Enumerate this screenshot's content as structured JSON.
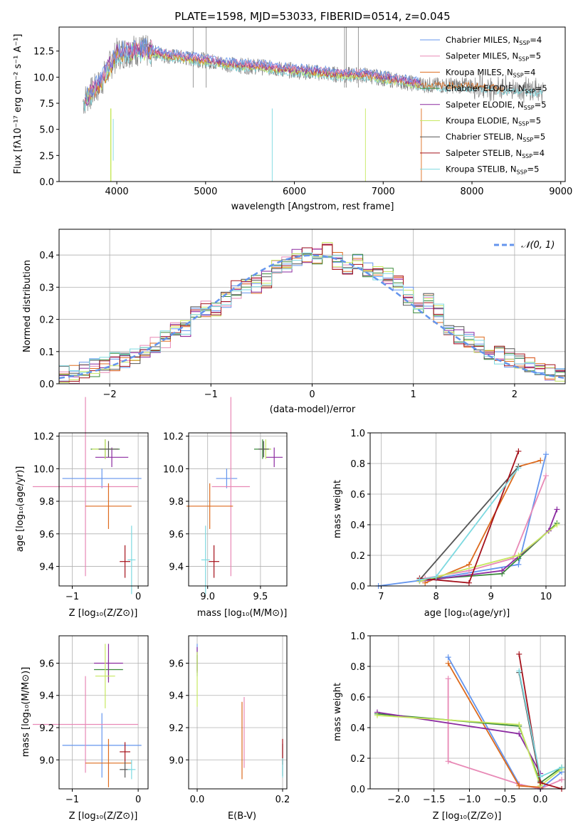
{
  "colors": [
    "#6495ed",
    "#e889b6",
    "#dd6b1e",
    "#3a8a3a",
    "#8b2aa0",
    "#c7e860",
    "#555555",
    "#a5121c",
    "#7dd9e0"
  ],
  "spectrum": {
    "title": "PLATE=1598, MJD=53033, FIBERID=0514, z=0.045",
    "xlabel": "wavelength [Angstrom, rest frame]",
    "ylabel": "Flux [fλ10⁻¹⁷ erg cm⁻² s⁻¹ A⁻¹]",
    "xticks": [
      "4000",
      "5000",
      "6000",
      "7000",
      "8000",
      "9000"
    ],
    "yticks": [
      "0.0",
      "2.5",
      "5.0",
      "7.5",
      "10.0",
      "12.5"
    ],
    "xlim": [
      3350,
      9050
    ],
    "ylim": [
      0,
      14.8
    ],
    "legend": [
      "Chabrier MILES, N_SSP=4",
      "Salpeter MILES, N_SSP=5",
      "Kroupa MILES, N_SSP=4",
      "Chabrier ELODIE, N_SSP=5",
      "Salpeter ELODIE, N_SSP=5",
      "Kroupa ELODIE, N_SSP=5",
      "Chabrier STELIB, N_SSP=5",
      "Salpeter STELIB, N_SSP=4",
      "Kroupa STELIB, N_SSP=5"
    ]
  },
  "residuals": {
    "xlabel": "(data-model)/error",
    "ylabel": "Normed distribution",
    "xticks": [
      "−2",
      "−1",
      "0",
      "1",
      "2"
    ],
    "yticks": [
      "0.0",
      "0.1",
      "0.2",
      "0.3",
      "0.4"
    ],
    "xlim": [
      -2.5,
      2.5
    ],
    "ylim": [
      0,
      0.48
    ],
    "legend_label": "𝒩(0, 1)"
  },
  "panels": {
    "age_z": {
      "xlabel": "Z [log₁₀(Z/Z⊙)]",
      "ylabel": "age  [log₁₀(age/yr)]",
      "xticks": [
        "−1",
        "0"
      ],
      "yticks": [
        "9.4",
        "9.6",
        "9.8",
        "10.0",
        "10.2"
      ]
    },
    "age_mass": {
      "xlabel": "mass [log₁₀(M/M⊙)]",
      "xticks": [
        "9.0",
        "9.5"
      ],
      "yticks": [
        "9.4",
        "9.6",
        "9.8",
        "10.0",
        "10.2"
      ]
    },
    "mw_age": {
      "xlabel": "age  [log₁₀(age/yr)]",
      "ylabel": "mass weight",
      "xticks": [
        "7",
        "8",
        "9",
        "10"
      ],
      "yticks": [
        "0.0",
        "0.2",
        "0.4",
        "0.6",
        "0.8",
        "1.0"
      ]
    },
    "mass_z": {
      "xlabel": "Z [log₁₀(Z/Z⊙)]",
      "ylabel": "mass [log₁₀(M/M⊙)]",
      "xticks": [
        "−1",
        "0"
      ],
      "yticks": [
        "9.0",
        "9.2",
        "9.4",
        "9.6"
      ]
    },
    "mass_ebv": {
      "xlabel": "E(B-V)",
      "xticks": [
        "0.0",
        "0.2"
      ],
      "yticks": [
        "9.0",
        "9.2",
        "9.4",
        "9.6"
      ]
    },
    "mw_z": {
      "xlabel": "Z [log₁₀(Z/Z⊙)]",
      "ylabel": "mass weight",
      "xticks": [
        "−2.0",
        "−1.5",
        "−1.0",
        "−0.5",
        "0.0"
      ],
      "yticks": [
        "0.0",
        "0.2",
        "0.4",
        "0.6",
        "0.8",
        "1.0"
      ]
    }
  },
  "chart_data": [
    {
      "type": "line",
      "title": "PLATE=1598, MJD=53033, FIBERID=0514, z=0.045",
      "xlabel": "wavelength [Angstrom, rest frame]",
      "xlim": [
        3350,
        9050
      ],
      "ylim": [
        0,
        14.8
      ],
      "x": [
        3600,
        3800,
        4000,
        4200,
        4400,
        4600,
        4800,
        5000,
        5200,
        5400,
        5600,
        5800,
        6000,
        6200,
        6400,
        6600,
        6800,
        7000,
        7200,
        7400,
        7600,
        7800,
        8000,
        8200,
        8400,
        8600,
        8800
      ],
      "series": [
        {
          "name": "data",
          "values": [
            7.5,
            9.2,
            12.2,
            12.6,
            12.4,
            12.0,
            11.8,
            11.6,
            11.3,
            11.1,
            11.0,
            10.8,
            10.6,
            10.5,
            10.3,
            10.2,
            10.2,
            9.9,
            9.6,
            9.3,
            9.2,
            9.2,
            9.2,
            9.0,
            8.9,
            8.8,
            8.7
          ]
        }
      ]
    },
    {
      "type": "bar",
      "xlabel": "(data-model)/error",
      "ylabel": "Normed distribution",
      "xlim": [
        -2.5,
        2.5
      ],
      "ylim": [
        0,
        0.48
      ],
      "bins": [
        -2.5,
        -2.4,
        -2.3,
        -2.2,
        -2.1,
        -2.0,
        -1.9,
        -1.8,
        -1.7,
        -1.6,
        -1.5,
        -1.4,
        -1.3,
        -1.2,
        -1.1,
        -1.0,
        -0.9,
        -0.8,
        -0.7,
        -0.6,
        -0.5,
        -0.4,
        -0.3,
        -0.2,
        -0.1,
        0.0,
        0.1,
        0.2,
        0.3,
        0.4,
        0.5,
        0.6,
        0.7,
        0.8,
        0.9,
        1.0,
        1.1,
        1.2,
        1.3,
        1.4,
        1.5,
        1.6,
        1.7,
        1.8,
        1.9,
        2.0,
        2.1,
        2.2,
        2.3,
        2.4
      ],
      "values": [
        0.03,
        0.03,
        0.04,
        0.05,
        0.06,
        0.07,
        0.07,
        0.09,
        0.1,
        0.12,
        0.14,
        0.18,
        0.17,
        0.21,
        0.23,
        0.24,
        0.26,
        0.29,
        0.3,
        0.31,
        0.32,
        0.36,
        0.37,
        0.39,
        0.4,
        0.39,
        0.41,
        0.38,
        0.37,
        0.38,
        0.36,
        0.34,
        0.33,
        0.31,
        0.27,
        0.25,
        0.26,
        0.22,
        0.18,
        0.15,
        0.14,
        0.12,
        0.1,
        0.09,
        0.08,
        0.07,
        0.06,
        0.05,
        0.04,
        0.03
      ],
      "curve": "N(0,1)"
    },
    {
      "type": "scatter",
      "name": "age_vs_Z",
      "xlim": [
        -1.2,
        0.15
      ],
      "ylim": [
        9.28,
        10.22
      ],
      "points": [
        {
          "x": -0.55,
          "y": 9.94,
          "xerr": 0.6,
          "yerr": 0.06
        },
        {
          "x": -0.8,
          "y": 9.89,
          "xerr": 0.8,
          "yerr": 0.55
        },
        {
          "x": -0.45,
          "y": 9.77,
          "xerr": 0.35,
          "yerr": 0.14
        },
        {
          "x": -0.5,
          "y": 10.12,
          "xerr": 0.22,
          "yerr": 0.06
        },
        {
          "x": -0.4,
          "y": 10.07,
          "xerr": 0.25,
          "yerr": 0.06
        },
        {
          "x": -0.5,
          "y": 10.12,
          "xerr": 0.2,
          "yerr": 0.06
        },
        {
          "x": -0.45,
          "y": 10.12,
          "xerr": 0.15,
          "yerr": 0.05
        },
        {
          "x": -0.2,
          "y": 9.43,
          "xerr": 0.08,
          "yerr": 0.1
        },
        {
          "x": -0.1,
          "y": 9.44,
          "xerr": 0.06,
          "yerr": 0.21
        }
      ]
    },
    {
      "type": "scatter",
      "name": "mass_weight_vs_age",
      "xlim": [
        6.8,
        10.35
      ],
      "ylim": [
        0,
        1
      ],
      "x": [
        7.0,
        7.8,
        8.0,
        8.6,
        9.2,
        9.5,
        10.0,
        10.2
      ],
      "series_count": 9
    },
    {
      "type": "scatter",
      "name": "mass_weight_vs_Z",
      "xlim": [
        -2.4,
        0.35
      ],
      "ylim": [
        0,
        1
      ],
      "x": [
        -2.3,
        -1.3,
        -0.3,
        0.0,
        0.3
      ],
      "series_count": 9
    }
  ]
}
